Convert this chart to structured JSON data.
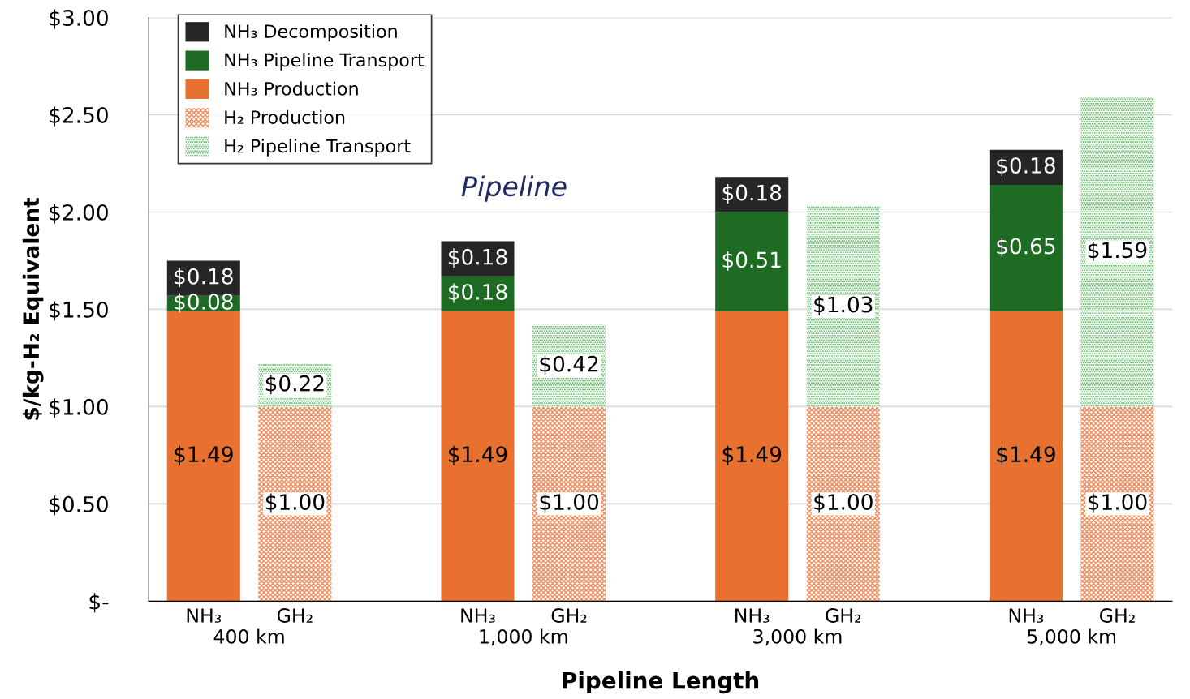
{
  "chart_data": {
    "type": "bar",
    "stacked": true,
    "xlabel": "Pipeline Length",
    "ylabel": "$/kg-H₂ Equivalent",
    "categories": [
      "NH₃",
      "GH₂",
      null,
      "NH₃",
      "GH₂",
      null,
      "NH₃",
      "GH₂",
      null,
      "NH₃",
      "GH₂"
    ],
    "series": [
      {
        "name": "NH₃ Production",
        "color": "#e8712f",
        "values": [
          1.49,
          null,
          null,
          1.49,
          null,
          null,
          1.49,
          null,
          null,
          1.49,
          null
        ],
        "value_labels": [
          "$1.49",
          null,
          null,
          "$1.49",
          null,
          null,
          "$1.49",
          null,
          null,
          "$1.49",
          null
        ]
      },
      {
        "name": "NH₃ Pipeline Transport",
        "color": "#1e6b24",
        "values": [
          0.08,
          null,
          null,
          0.18,
          null,
          null,
          0.51,
          null,
          null,
          0.65,
          null
        ],
        "value_labels": [
          "$0.08",
          null,
          null,
          "$0.18",
          null,
          null,
          "$0.51",
          null,
          null,
          "$0.65",
          null
        ]
      },
      {
        "name": "NH₃ Decomposition",
        "color": "#262626",
        "values": [
          0.18,
          null,
          null,
          0.18,
          null,
          null,
          0.18,
          null,
          null,
          0.18,
          null
        ],
        "value_labels": [
          "$0.18",
          null,
          null,
          "$0.18",
          null,
          null,
          "$0.18",
          null,
          null,
          "$0.18",
          null
        ]
      },
      {
        "name": "H₂ Production",
        "color": "#f08a5a",
        "values": [
          null,
          1.0,
          null,
          null,
          1.0,
          null,
          null,
          1.0,
          null,
          null,
          1.0
        ],
        "value_labels": [
          null,
          "$1.00",
          null,
          null,
          "$1.00",
          null,
          null,
          "$1.00",
          null,
          null,
          "$1.00"
        ]
      },
      {
        "name": "H₂ Pipeline Transport",
        "color": "#4caf50",
        "values": [
          null,
          0.22,
          null,
          null,
          0.42,
          null,
          null,
          1.03,
          null,
          null,
          1.59
        ],
        "value_labels": [
          null,
          "$0.22",
          null,
          null,
          "$0.42",
          null,
          null,
          "$1.03",
          null,
          null,
          "$1.59"
        ]
      }
    ],
    "ylim": [
      0,
      3
    ],
    "yticks": [
      {
        "value": 0,
        "label": "$-"
      },
      {
        "value": 0.5,
        "label": "$0.50"
      },
      {
        "value": 1.0,
        "label": "$1.00"
      },
      {
        "value": 1.5,
        "label": "$1.50"
      },
      {
        "value": 2.0,
        "label": "$2.00"
      },
      {
        "value": 2.5,
        "label": "$2.50"
      },
      {
        "value": 3.0,
        "label": "$3.00"
      }
    ],
    "grid": "y",
    "legend": "top left",
    "annotations": [
      "400 km",
      "1,000 km",
      "3,000 km",
      "5,000 km",
      "Pipeline"
    ]
  }
}
